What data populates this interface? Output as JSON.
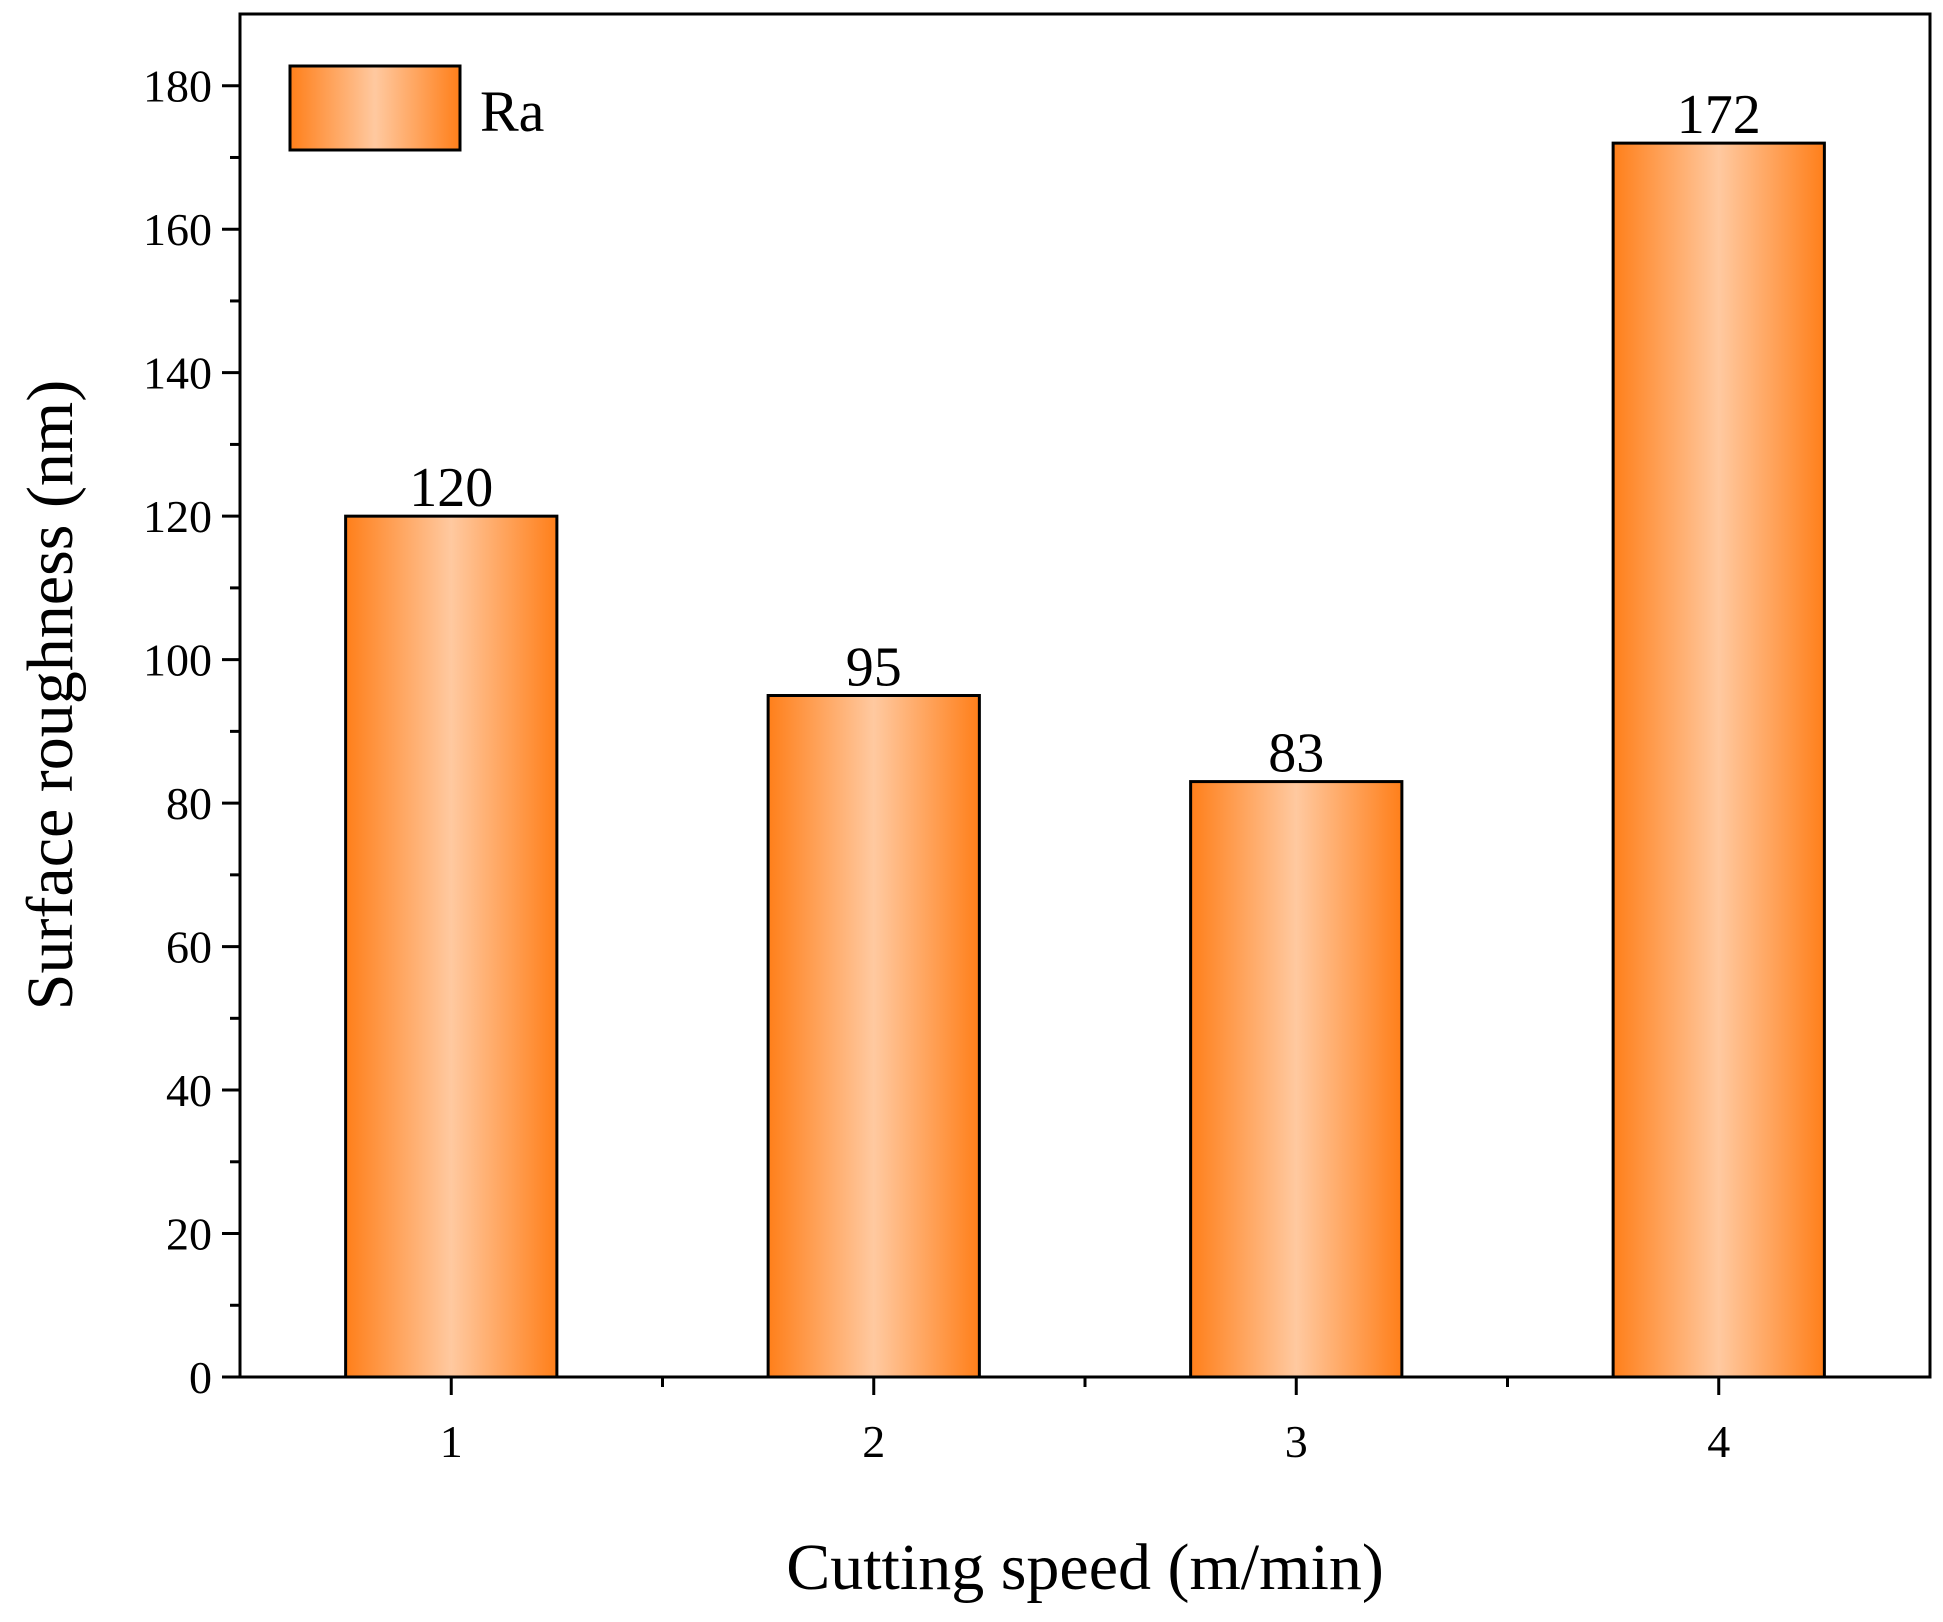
{
  "chart_data": {
    "type": "bar",
    "title": "",
    "xlabel": "Cutting speed (m/min)",
    "ylabel": "Surface roughness (nm)",
    "categories": [
      "1",
      "2",
      "3",
      "4"
    ],
    "series": [
      {
        "name": "Ra",
        "values": [
          120,
          95,
          83,
          172
        ]
      }
    ],
    "data_labels": [
      "120",
      "95",
      "83",
      "172"
    ],
    "ylim": [
      0,
      190
    ],
    "yticks": [
      0,
      20,
      40,
      60,
      80,
      100,
      120,
      140,
      160,
      180
    ],
    "ytick_labels": [
      "0",
      "20",
      "40",
      "60",
      "80",
      "100",
      "120",
      "140",
      "160",
      "180"
    ],
    "xlim": [
      0.5,
      4.5
    ],
    "grid": false,
    "legend_position": "top-left",
    "colors": {
      "bar_edge": "#ff7f1a",
      "bar_center": "#ffc9a0",
      "outline": "#000000"
    }
  }
}
